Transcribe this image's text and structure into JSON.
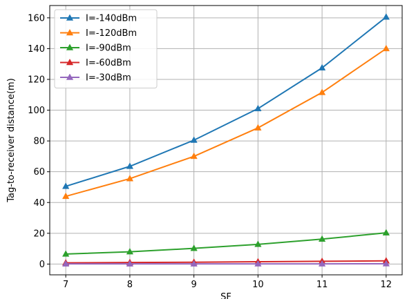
{
  "chart_data": {
    "type": "line",
    "xlabel": "SF",
    "ylabel": "Tag-to-receiver distance(m)",
    "x": [
      7,
      8,
      9,
      10,
      11,
      12
    ],
    "xlim": [
      6.75,
      12.25
    ],
    "ylim": [
      -7,
      168
    ],
    "xticks": [
      "7",
      "8",
      "9",
      "10",
      "11",
      "12"
    ],
    "yticks": [
      "0",
      "20",
      "40",
      "60",
      "80",
      "100",
      "120",
      "140",
      "160"
    ],
    "grid": true,
    "legend_position": "top-left",
    "marker": "triangle",
    "series": [
      {
        "name": "I=-140dBm",
        "color": "#1f77b4",
        "values": [
          50.5,
          63.5,
          80.5,
          101,
          127.5,
          160.5
        ]
      },
      {
        "name": "I=-120dBm",
        "color": "#ff7f0e",
        "values": [
          44,
          55.5,
          70,
          88.5,
          111.5,
          140
        ]
      },
      {
        "name": "I=-90dBm",
        "color": "#2ca02c",
        "values": [
          6.5,
          8,
          10.2,
          12.8,
          16.2,
          20.3
        ]
      },
      {
        "name": "I=-60dBm",
        "color": "#d62728",
        "values": [
          0.8,
          1.0,
          1.2,
          1.5,
          1.8,
          2.1
        ]
      },
      {
        "name": "I=-30dBm",
        "color": "#9467bd",
        "values": [
          0.1,
          0.1,
          0.1,
          0.15,
          0.15,
          0.2
        ]
      }
    ]
  }
}
